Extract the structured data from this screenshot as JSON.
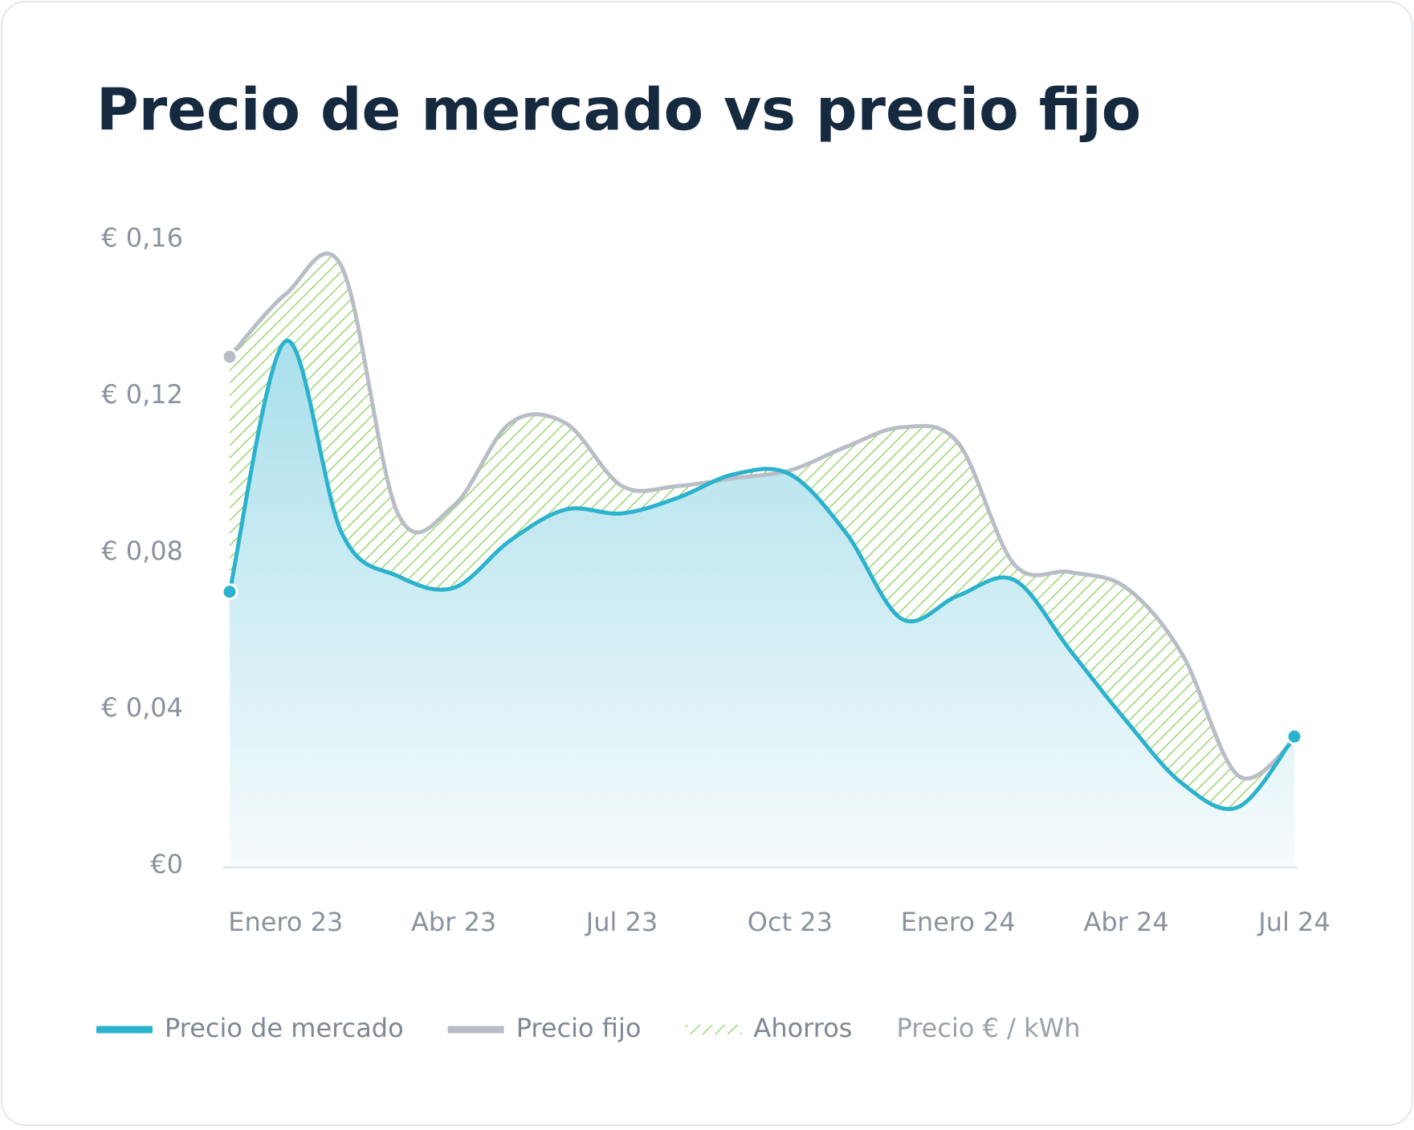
{
  "chart_data": {
    "type": "line",
    "title": "Precio de mercado vs precio fijo",
    "categories": [
      null,
      "Enero 23",
      null,
      null,
      "Abr 23",
      null,
      null,
      "Jul 23",
      null,
      null,
      "Oct 23",
      null,
      null,
      "Enero 24",
      null,
      null,
      "Abr 24",
      null,
      null,
      "Jul 24"
    ],
    "series": [
      {
        "name": "Precio de mercado",
        "color": "#2bb2cd",
        "values": [
          0.07,
          0.134,
          0.085,
          0.074,
          0.071,
          0.083,
          0.091,
          0.09,
          0.094,
          0.1,
          0.1,
          0.085,
          0.063,
          0.069,
          0.073,
          0.055,
          0.037,
          0.021,
          0.015,
          0.033
        ]
      },
      {
        "name": "Precio fijo",
        "color": "#b9bec6",
        "values": [
          0.13,
          0.146,
          0.153,
          0.09,
          0.092,
          0.113,
          0.113,
          0.097,
          0.097,
          0.099,
          0.101,
          0.107,
          0.112,
          0.108,
          0.077,
          0.075,
          0.071,
          0.054,
          0.023,
          0.032
        ]
      }
    ],
    "savings_label": "Ahorros",
    "savings_color": "#7ac943",
    "unit_label": "Precio € / kWh",
    "ylim": [
      0,
      0.16
    ],
    "yticks": [
      {
        "value": 0,
        "label": "€0"
      },
      {
        "value": 0.04,
        "label": "€ 0,04"
      },
      {
        "value": 0.08,
        "label": "€ 0,08"
      },
      {
        "value": 0.12,
        "label": "€ 0,12"
      },
      {
        "value": 0.16,
        "label": "€ 0,16"
      }
    ]
  }
}
